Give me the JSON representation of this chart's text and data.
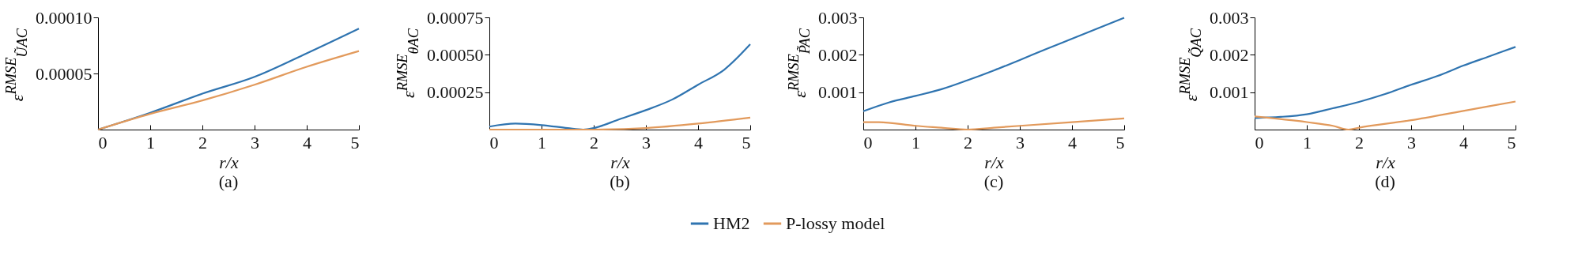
{
  "chart_data": [
    {
      "type": "line",
      "title": "(a)",
      "xlabel": "r/x",
      "ylabel": "ε$^{RMSE}$$_{ŨAC}$",
      "x": [
        0,
        1,
        2,
        3,
        4,
        5
      ],
      "xlim": [
        0,
        5
      ],
      "xticks": [
        0,
        1,
        2,
        3,
        4,
        5
      ],
      "ylim": [
        0,
        0.0001
      ],
      "yticks": [
        {
          "value": 5e-05,
          "label": "0.00005"
        },
        {
          "value": 0.0001,
          "label": "0.00010"
        }
      ],
      "legend": "bottom",
      "series": [
        {
          "name": "HM2",
          "color": "#2f74b0",
          "values": [
            0,
            1.5e-05,
            3.2e-05,
            4.7e-05,
            6.8e-05,
            9e-05
          ]
        },
        {
          "name": "P-lossy model",
          "color": "#e29a5c",
          "values": [
            0,
            1.4e-05,
            2.6e-05,
            4e-05,
            5.6e-05,
            7e-05
          ]
        }
      ]
    },
    {
      "type": "line",
      "title": "(b)",
      "xlabel": "r/x",
      "ylabel": "ε$^{RMSE}$$_{θAC}$",
      "xlim": [
        0,
        5
      ],
      "xticks": [
        0,
        1,
        2,
        3,
        4,
        5
      ],
      "ylim": [
        0,
        0.00075
      ],
      "yticks": [
        {
          "value": 0.00025,
          "label": "0.00025"
        },
        {
          "value": 0.0005,
          "label": "0.00050"
        },
        {
          "value": 0.00075,
          "label": "0.00075"
        }
      ],
      "series": [
        {
          "color": "#2f74b0",
          "x": [
            0,
            0.5,
            1,
            1.5,
            1.8,
            2,
            2.5,
            3,
            3.5,
            4,
            4.5,
            5
          ],
          "values": [
            2e-05,
            4e-05,
            3e-05,
            1e-05,
            0,
            1e-05,
            7e-05,
            0.00013,
            0.0002,
            0.0003,
            0.0004,
            0.00057
          ]
        },
        {
          "color": "#e29a5c",
          "x": [
            0,
            1,
            2,
            3,
            4,
            5
          ],
          "values": [
            0,
            0,
            0,
            1e-05,
            4e-05,
            8e-05
          ]
        }
      ]
    },
    {
      "type": "line",
      "title": "(c)",
      "xlabel": "r/x",
      "ylabel": "ε$^{RMSE}$$_{P̃AC}$",
      "xlim": [
        0,
        5
      ],
      "xticks": [
        0,
        1,
        2,
        3,
        4,
        5
      ],
      "ylim": [
        0,
        0.003
      ],
      "yticks": [
        0.001,
        0.002,
        0.003
      ],
      "series": [
        {
          "color": "#2f74b0",
          "x": [
            0,
            0.5,
            1,
            1.5,
            2,
            2.5,
            3,
            3.5,
            4,
            4.5,
            5
          ],
          "values": [
            0.00049,
            0.00073,
            0.0009,
            0.00108,
            0.00132,
            0.00158,
            0.00186,
            0.00215,
            0.00243,
            0.00271,
            0.00299
          ]
        },
        {
          "color": "#e29a5c",
          "x": [
            0,
            0.3,
            1,
            1.5,
            2,
            2.5,
            3,
            4,
            5
          ],
          "values": [
            0.0002,
            0.0002,
            0.0001,
            5e-05,
            0,
            5e-05,
            0.0001,
            0.0002,
            0.0003
          ]
        }
      ]
    },
    {
      "type": "line",
      "title": "(d)",
      "xlabel": "r/x",
      "ylabel": "ε$^{RMSE}$$_{Q̃AC}$",
      "xlim": [
        0,
        5
      ],
      "xticks": [
        0,
        1,
        2,
        3,
        4,
        5
      ],
      "ylim": [
        0,
        0.003
      ],
      "yticks": [
        0.001,
        0.002,
        0.003
      ],
      "series": [
        {
          "color": "#2f74b0",
          "x": [
            0,
            0.5,
            1,
            1.5,
            2,
            2.5,
            3,
            3.5,
            4,
            4.5,
            5
          ],
          "values": [
            0.00031,
            0.00034,
            0.00041,
            0.00057,
            0.00074,
            0.00095,
            0.0012,
            0.00143,
            0.00171,
            0.00196,
            0.00221
          ]
        },
        {
          "color": "#e29a5c",
          "x": [
            0,
            1,
            1.5,
            1.8,
            2,
            3,
            4,
            5
          ],
          "values": [
            0.00035,
            0.0002,
            0.0001,
            0,
            5e-05,
            0.00025,
            0.0005,
            0.00075
          ]
        }
      ]
    }
  ]
}
